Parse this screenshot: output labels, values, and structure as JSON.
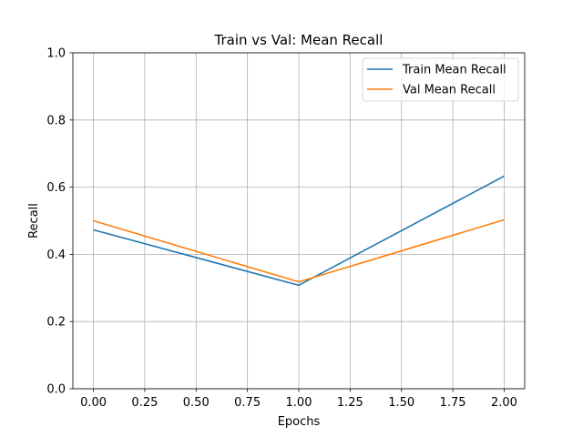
{
  "chart_data": {
    "type": "line",
    "title": "Train vs Val: Mean Recall",
    "xlabel": "Epochs",
    "ylabel": "Recall",
    "xlim": [
      -0.1,
      2.1
    ],
    "ylim": [
      0.0,
      1.0
    ],
    "x_ticks": [
      0.0,
      0.25,
      0.5,
      0.75,
      1.0,
      1.25,
      1.5,
      1.75,
      2.0
    ],
    "x_tick_labels": [
      "0.00",
      "0.25",
      "0.50",
      "0.75",
      "1.00",
      "1.25",
      "1.50",
      "1.75",
      "2.00"
    ],
    "y_ticks": [
      0.0,
      0.2,
      0.4,
      0.6,
      0.8,
      1.0
    ],
    "y_tick_labels": [
      "0.0",
      "0.2",
      "0.4",
      "0.6",
      "0.8",
      "1.0"
    ],
    "grid": true,
    "legend_position": "top-right",
    "x": [
      0,
      1,
      2
    ],
    "series": [
      {
        "name": "Train Mean Recall",
        "color": "#1f77b4",
        "values": [
          0.473,
          0.308,
          0.633
        ]
      },
      {
        "name": "Val Mean Recall",
        "color": "#ff7f0e",
        "values": [
          0.5,
          0.318,
          0.503
        ]
      }
    ]
  }
}
